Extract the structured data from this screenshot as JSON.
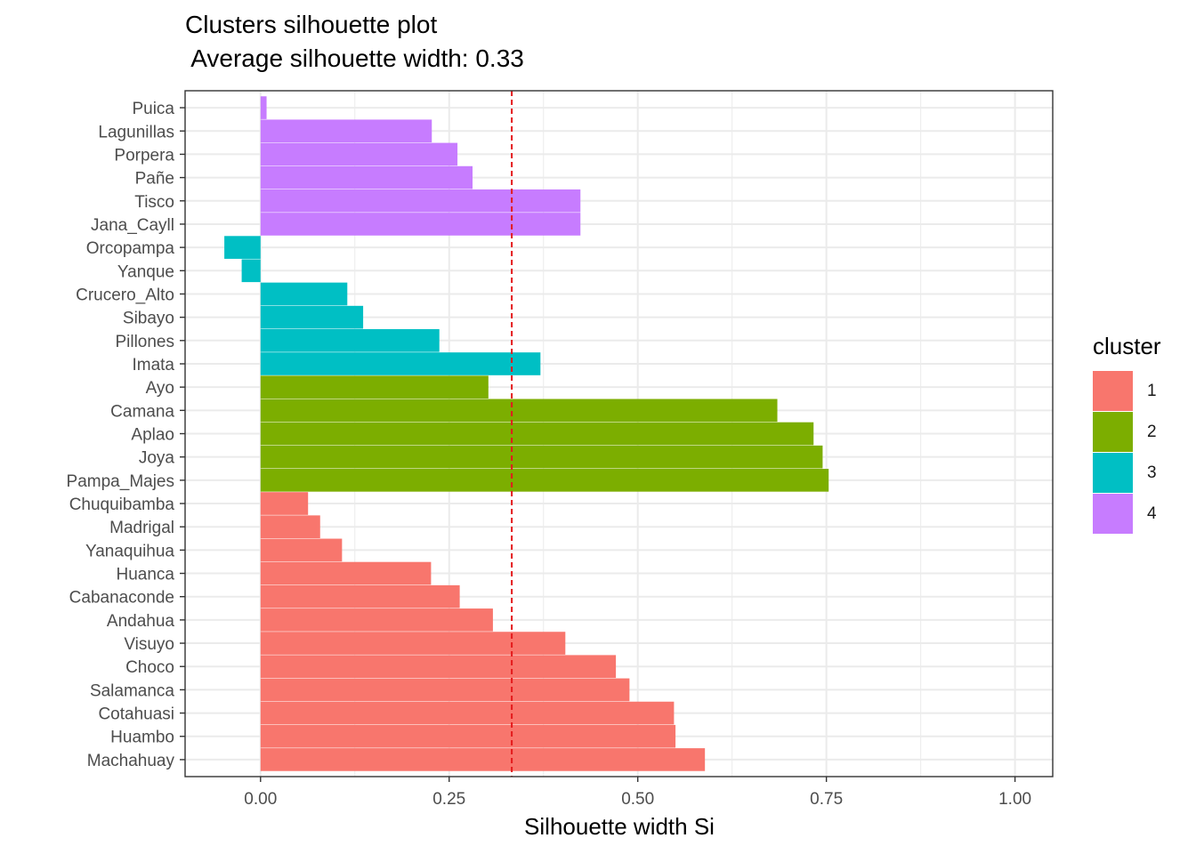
{
  "chart_data": {
    "type": "bar",
    "orientation": "horizontal",
    "title": "Clusters silhouette plot",
    "subtitle": " Average silhouette width: 0.33",
    "xlabel": "Silhouette width Si",
    "ylabel": "",
    "xlim": [
      -0.1,
      1.05
    ],
    "xticks": [
      0.0,
      0.25,
      0.5,
      0.75,
      1.0
    ],
    "xtick_labels": [
      "0.00",
      "0.25",
      "0.50",
      "0.75",
      "1.00"
    ],
    "grid": true,
    "average_line": {
      "value": 0.333,
      "color": "#e41a1c",
      "style": "dashed"
    },
    "legend": {
      "title": "cluster",
      "position": "right"
    },
    "series": [
      {
        "name": "1",
        "color": "#F8766D"
      },
      {
        "name": "2",
        "color": "#7CAE00"
      },
      {
        "name": "3",
        "color": "#00BFC4"
      },
      {
        "name": "4",
        "color": "#C77CFF"
      }
    ],
    "bars": [
      {
        "label": "Puica",
        "cluster": "4",
        "value": 0.008
      },
      {
        "label": "Lagunillas",
        "cluster": "4",
        "value": 0.227
      },
      {
        "label": "Porpera",
        "cluster": "4",
        "value": 0.261
      },
      {
        "label": "Pañe",
        "cluster": "4",
        "value": 0.281
      },
      {
        "label": "Tisco",
        "cluster": "4",
        "value": 0.424
      },
      {
        "label": "Jana_Cayll",
        "cluster": "4",
        "value": 0.424
      },
      {
        "label": "Orcopampa",
        "cluster": "3",
        "value": -0.048
      },
      {
        "label": "Yanque",
        "cluster": "3",
        "value": -0.025
      },
      {
        "label": "Crucero_Alto",
        "cluster": "3",
        "value": 0.115
      },
      {
        "label": "Sibayo",
        "cluster": "3",
        "value": 0.136
      },
      {
        "label": "Pillones",
        "cluster": "3",
        "value": 0.237
      },
      {
        "label": "Imata",
        "cluster": "3",
        "value": 0.371
      },
      {
        "label": "Ayo",
        "cluster": "2",
        "value": 0.302
      },
      {
        "label": "Camana",
        "cluster": "2",
        "value": 0.685
      },
      {
        "label": "Aplao",
        "cluster": "2",
        "value": 0.733
      },
      {
        "label": "Joya",
        "cluster": "2",
        "value": 0.745
      },
      {
        "label": "Pampa_Majes",
        "cluster": "2",
        "value": 0.753
      },
      {
        "label": "Chuquibamba",
        "cluster": "1",
        "value": 0.063
      },
      {
        "label": "Madrigal",
        "cluster": "1",
        "value": 0.079
      },
      {
        "label": "Yanaquihua",
        "cluster": "1",
        "value": 0.108
      },
      {
        "label": "Huanca",
        "cluster": "1",
        "value": 0.226
      },
      {
        "label": "Cabanaconde",
        "cluster": "1",
        "value": 0.264
      },
      {
        "label": "Andahua",
        "cluster": "1",
        "value": 0.308
      },
      {
        "label": "Visuyo",
        "cluster": "1",
        "value": 0.404
      },
      {
        "label": "Choco",
        "cluster": "1",
        "value": 0.471
      },
      {
        "label": "Salamanca",
        "cluster": "1",
        "value": 0.489
      },
      {
        "label": "Cotahuasi",
        "cluster": "1",
        "value": 0.548
      },
      {
        "label": "Huambo",
        "cluster": "1",
        "value": 0.55
      },
      {
        "label": "Machahuay",
        "cluster": "1",
        "value": 0.589
      }
    ]
  }
}
